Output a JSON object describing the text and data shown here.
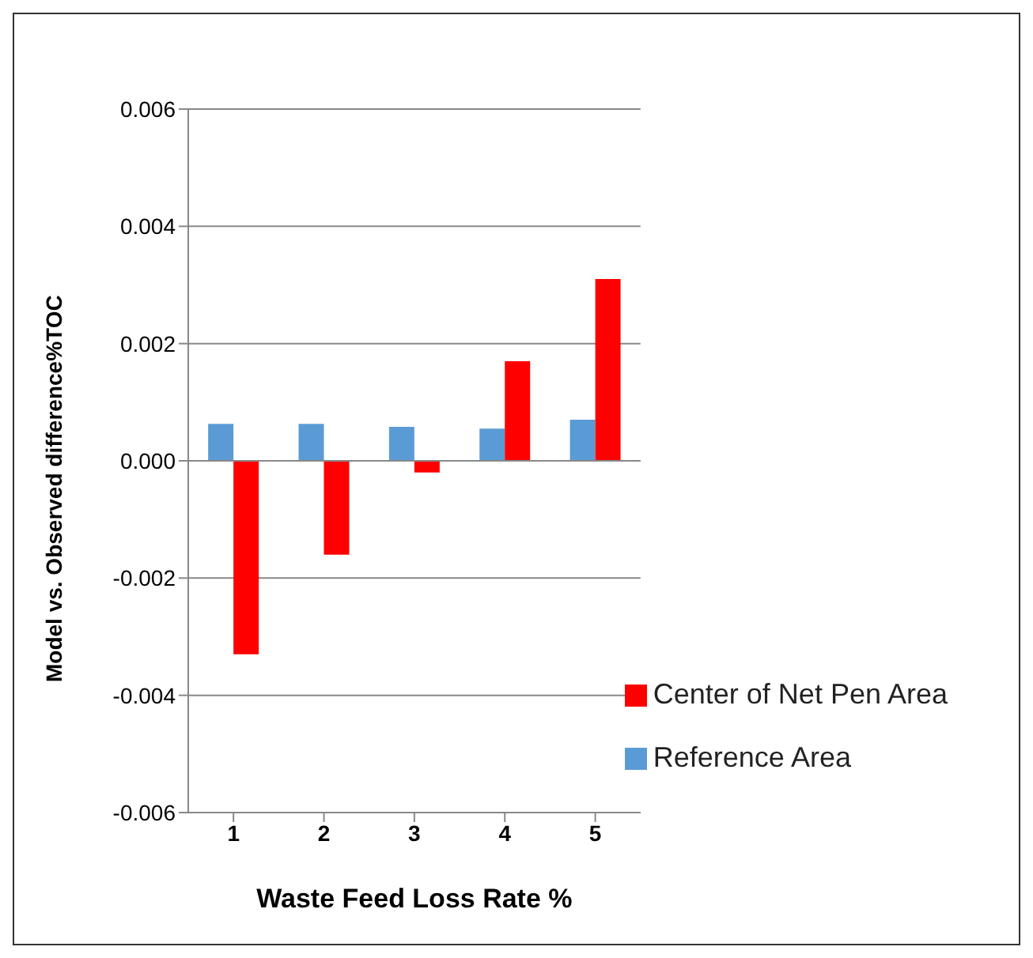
{
  "chart_data": {
    "type": "bar",
    "xlabel": "Waste Feed Loss Rate %",
    "ylabel": "Model vs. Observed difference%TOC",
    "categories": [
      "1",
      "2",
      "3",
      "4",
      "5"
    ],
    "series": [
      {
        "name": "Reference Area",
        "color": "#5b9bd5",
        "values": [
          0.00063,
          0.00063,
          0.00058,
          0.00055,
          0.0007
        ]
      },
      {
        "name": "Center of Net Pen Area",
        "color": "#ff0000",
        "values": [
          -0.0033,
          -0.0016,
          -0.0002,
          0.0017,
          0.0031
        ]
      }
    ],
    "ylim": [
      -0.006,
      0.006
    ],
    "yticks": [
      {
        "value": -0.006,
        "label": "-0.006"
      },
      {
        "value": -0.004,
        "label": "-0.004"
      },
      {
        "value": -0.002,
        "label": "-0.002"
      },
      {
        "value": 0,
        "label": "0.000"
      },
      {
        "value": 0.002,
        "label": "0.002"
      },
      {
        "value": 0.004,
        "label": "0.004"
      },
      {
        "value": 0.006,
        "label": "0.006"
      }
    ],
    "grid": "y",
    "legend": "bottom right"
  }
}
